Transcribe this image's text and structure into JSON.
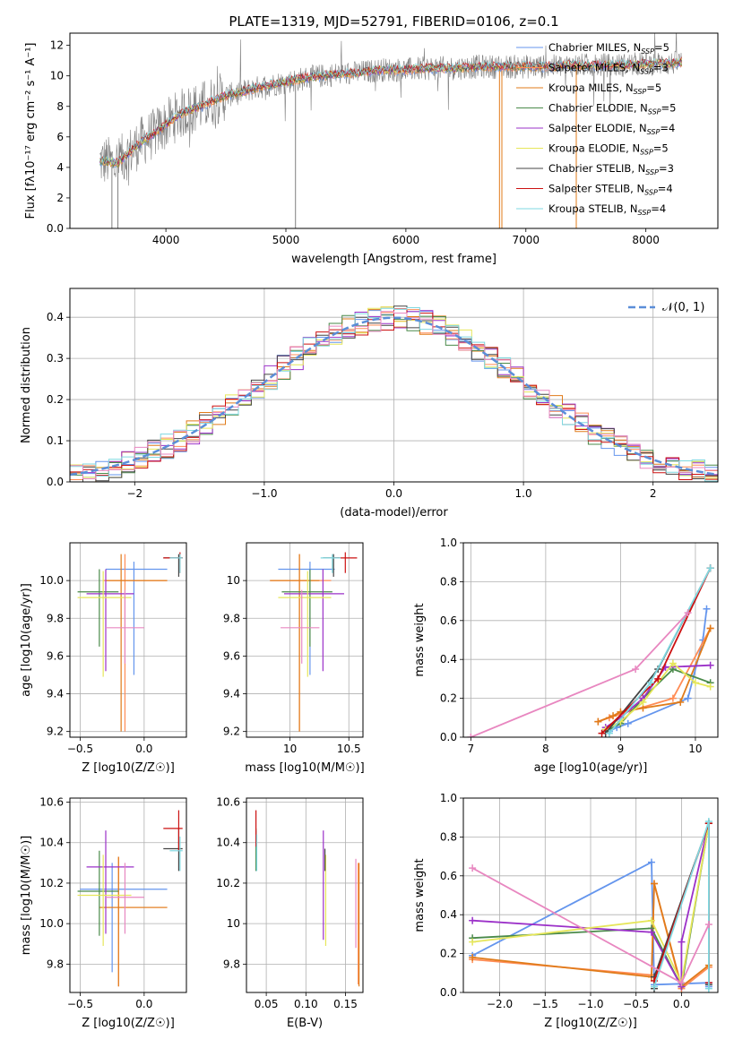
{
  "colors": {
    "Chabrier MILES": "#6495ed",
    "Salpeter MILES": "#ff8c55",
    "Kroupa MILES": "#e07b1a",
    "Chabrier ELODIE": "#4a8a4a",
    "Salpeter ELODIE": "#9b30c8",
    "Kroupa ELODIE": "#e6e65a",
    "Chabrier STELIB": "#444444",
    "Salpeter STELIB": "#cc1111",
    "Kroupa STELIB": "#7fd8e0",
    "extra_pink": "#e887c0",
    "obs": "#808080"
  },
  "chart_data": [
    {
      "id": "spectrum",
      "type": "line",
      "title": "PLATE=1319, MJD=52791, FIBERID=0106, z=0.1",
      "xlabel": "wavelength [Angstrom, rest frame]",
      "ylabel": "Flux [fλ10⁻¹⁷ erg cm⁻² s⁻¹ A⁻¹]",
      "xlim": [
        3200,
        8600
      ],
      "ylim": [
        0,
        12.8
      ],
      "xticks": [
        4000,
        5000,
        6000,
        7000,
        8000
      ],
      "yticks": [
        0,
        2,
        4,
        6,
        8,
        10,
        12
      ],
      "grid": false,
      "legend_position": "top-right",
      "series": [
        {
          "name": "Chabrier MILES, N_SSP=5",
          "color_key": "Chabrier MILES"
        },
        {
          "name": "Salpeter MILES, N_SSP=3",
          "color_key": "Salpeter MILES"
        },
        {
          "name": "Kroupa MILES, N_SSP=5",
          "color_key": "Kroupa MILES"
        },
        {
          "name": "Chabrier ELODIE, N_SSP=5",
          "color_key": "Chabrier ELODIE"
        },
        {
          "name": "Salpeter ELODIE, N_SSP=4",
          "color_key": "Salpeter ELODIE"
        },
        {
          "name": "Kroupa ELODIE, N_SSP=5",
          "color_key": "Kroupa ELODIE"
        },
        {
          "name": "Chabrier STELIB, N_SSP=3",
          "color_key": "Chabrier STELIB"
        },
        {
          "name": "Salpeter STELIB, N_SSP=4",
          "color_key": "Salpeter STELIB"
        },
        {
          "name": "Kroupa STELIB, N_SSP=4",
          "color_key": "Kroupa STELIB"
        }
      ],
      "continuum": [
        [
          3500,
          4.4
        ],
        [
          3600,
          4.3
        ],
        [
          3700,
          5.0
        ],
        [
          3800,
          5.7
        ],
        [
          3900,
          6.2
        ],
        [
          4000,
          6.8
        ],
        [
          4100,
          7.4
        ],
        [
          4200,
          7.8
        ],
        [
          4300,
          8.0
        ],
        [
          4400,
          8.4
        ],
        [
          4500,
          8.7
        ],
        [
          4600,
          8.9
        ],
        [
          4800,
          9.3
        ],
        [
          5000,
          9.6
        ],
        [
          5200,
          9.9
        ],
        [
          5400,
          10.1
        ],
        [
          5600,
          10.2
        ],
        [
          5800,
          10.4
        ],
        [
          6000,
          10.4
        ],
        [
          6200,
          10.5
        ],
        [
          6400,
          10.5
        ],
        [
          6600,
          10.6
        ],
        [
          6800,
          10.6
        ],
        [
          7000,
          10.6
        ],
        [
          7200,
          10.6
        ],
        [
          7400,
          10.7
        ],
        [
          7600,
          10.7
        ],
        [
          7800,
          10.7
        ],
        [
          8000,
          10.8
        ],
        [
          8200,
          10.8
        ],
        [
          8300,
          10.9
        ]
      ]
    },
    {
      "id": "residuals",
      "type": "step",
      "xlabel": "(data-model)/error",
      "ylabel": "Normed distribution",
      "xlim": [
        -2.5,
        2.5
      ],
      "ylim": [
        0,
        0.47
      ],
      "xticks": [
        -2,
        -1,
        0,
        1,
        2
      ],
      "yticks": [
        0.0,
        0.1,
        0.2,
        0.3,
        0.4
      ],
      "grid": true,
      "legend_position": "top-right",
      "legend": [
        "𝒩(0, 1)"
      ],
      "normal_curve": {
        "mean": 0,
        "sigma": 1
      }
    },
    {
      "id": "age_vs_Z",
      "type": "errorbar",
      "xlabel": "Z [log10(Z/Z☉)]",
      "ylabel": "age [log10(age/yr)]",
      "xlim": [
        -0.58,
        0.33
      ],
      "ylim": [
        9.17,
        10.2
      ],
      "xticks": [
        -0.5,
        0.0
      ],
      "yticks": [
        9.2,
        9.4,
        9.6,
        9.8,
        10.0
      ],
      "grid": true,
      "points": [
        {
          "c": "Chabrier MILES",
          "x": -0.08,
          "y": 10.06,
          "xlo": -0.3,
          "xhi": 0.18,
          "ylo": 9.5,
          "yhi": 10.1
        },
        {
          "c": "Salpeter MILES",
          "x": -0.15,
          "y": 10.0,
          "xlo": -0.32,
          "xhi": 0.18,
          "ylo": 9.2,
          "yhi": 10.14
        },
        {
          "c": "Kroupa MILES",
          "x": -0.18,
          "y": 10.0,
          "xlo": -0.3,
          "xhi": 0.18,
          "ylo": 9.2,
          "yhi": 10.14
        },
        {
          "c": "Chabrier ELODIE",
          "x": -0.35,
          "y": 9.94,
          "xlo": -0.52,
          "xhi": -0.2,
          "ylo": 9.65,
          "yhi": 10.06
        },
        {
          "c": "Salpeter ELODIE",
          "x": -0.3,
          "y": 9.93,
          "xlo": -0.45,
          "xhi": -0.08,
          "ylo": 9.52,
          "yhi": 10.06
        },
        {
          "c": "Kroupa ELODIE",
          "x": -0.32,
          "y": 9.91,
          "xlo": -0.52,
          "xhi": -0.1,
          "ylo": 9.49,
          "yhi": 10.05
        },
        {
          "c": "Chabrier STELIB",
          "x": 0.27,
          "y": 10.12,
          "xlo": 0.15,
          "xhi": 0.3,
          "ylo": 10.02,
          "yhi": 10.14
        },
        {
          "c": "Salpeter STELIB",
          "x": 0.28,
          "y": 10.12,
          "xlo": 0.15,
          "xhi": 0.3,
          "ylo": 10.04,
          "yhi": 10.15
        },
        {
          "c": "Kroupa STELIB",
          "x": 0.28,
          "y": 10.12,
          "xlo": 0.2,
          "xhi": 0.3,
          "ylo": 10.04,
          "yhi": 10.14
        },
        {
          "c": "extra_pink",
          "x": -0.15,
          "y": 9.75,
          "xlo": -0.3,
          "xhi": 0.0,
          "ylo": 9.56,
          "yhi": 9.95
        }
      ]
    },
    {
      "id": "age_vs_mass",
      "type": "errorbar",
      "xlabel": "mass [log10(M/M☉)]",
      "ylabel": "",
      "xlim": [
        9.63,
        10.62
      ],
      "ylim": [
        9.17,
        10.2
      ],
      "xticks": [
        10.0,
        10.5
      ],
      "yticks": [
        9.2,
        9.4,
        9.6,
        9.8,
        10.0
      ],
      "grid": true,
      "points": [
        {
          "c": "Chabrier MILES",
          "x": 10.17,
          "y": 10.06,
          "xlo": 9.9,
          "xhi": 10.38,
          "ylo": 9.5,
          "yhi": 10.1
        },
        {
          "c": "Salpeter MILES",
          "x": 10.08,
          "y": 10.0,
          "xlo": 9.83,
          "xhi": 10.35,
          "ylo": 9.2,
          "yhi": 10.14
        },
        {
          "c": "Kroupa MILES",
          "x": 10.08,
          "y": 10.0,
          "xlo": 9.83,
          "xhi": 10.25,
          "ylo": 9.2,
          "yhi": 10.14
        },
        {
          "c": "Chabrier ELODIE",
          "x": 10.17,
          "y": 9.94,
          "xlo": 9.93,
          "xhi": 10.36,
          "ylo": 9.65,
          "yhi": 10.06
        },
        {
          "c": "Salpeter ELODIE",
          "x": 10.28,
          "y": 9.93,
          "xlo": 9.95,
          "xhi": 10.46,
          "ylo": 9.52,
          "yhi": 10.06
        },
        {
          "c": "Kroupa ELODIE",
          "x": 10.15,
          "y": 9.91,
          "xlo": 9.9,
          "xhi": 10.35,
          "ylo": 9.49,
          "yhi": 10.05
        },
        {
          "c": "Chabrier STELIB",
          "x": 10.37,
          "y": 10.12,
          "xlo": 10.28,
          "xhi": 10.42,
          "ylo": 10.02,
          "yhi": 10.14
        },
        {
          "c": "Salpeter STELIB",
          "x": 10.47,
          "y": 10.12,
          "xlo": 10.38,
          "xhi": 10.57,
          "ylo": 10.04,
          "yhi": 10.15
        },
        {
          "c": "Kroupa STELIB",
          "x": 10.36,
          "y": 10.12,
          "xlo": 10.26,
          "xhi": 10.43,
          "ylo": 10.04,
          "yhi": 10.14
        },
        {
          "c": "extra_pink",
          "x": 10.1,
          "y": 9.75,
          "xlo": 9.92,
          "xhi": 10.25,
          "ylo": 9.56,
          "yhi": 9.95
        }
      ]
    },
    {
      "id": "weight_vs_age",
      "type": "line",
      "xlabel": "age [log10(age/yr)]",
      "ylabel": "mass weight",
      "xlim": [
        6.9,
        10.3
      ],
      "ylim": [
        0,
        1.0
      ],
      "xticks": [
        7,
        8,
        9,
        10
      ],
      "yticks": [
        0.0,
        0.2,
        0.4,
        0.6,
        0.8,
        1.0
      ],
      "grid": true,
      "series": [
        {
          "c": "Chabrier MILES",
          "x": [
            8.85,
            8.95,
            9.1,
            9.9,
            10.1,
            10.15
          ],
          "y": [
            0.03,
            0.05,
            0.07,
            0.2,
            0.5,
            0.66
          ]
        },
        {
          "c": "Salpeter MILES",
          "x": [
            8.7,
            8.85,
            9.0,
            9.7,
            10.2
          ],
          "y": [
            0.08,
            0.1,
            0.12,
            0.2,
            0.56
          ]
        },
        {
          "c": "Kroupa MILES",
          "x": [
            8.7,
            8.9,
            9.0,
            9.3,
            9.8,
            10.2
          ],
          "y": [
            0.08,
            0.11,
            0.13,
            0.15,
            0.18,
            0.56
          ]
        },
        {
          "c": "Chabrier ELODIE",
          "x": [
            8.8,
            9.0,
            9.3,
            9.7,
            10.2
          ],
          "y": [
            0.03,
            0.07,
            0.2,
            0.35,
            0.28
          ]
        },
        {
          "c": "Salpeter ELODIE",
          "x": [
            8.8,
            9.0,
            9.3,
            9.6,
            10.2
          ],
          "y": [
            0.05,
            0.1,
            0.2,
            0.36,
            0.37
          ]
        },
        {
          "c": "Kroupa ELODIE",
          "x": [
            8.8,
            9.0,
            9.3,
            9.7,
            10.0,
            10.2
          ],
          "y": [
            0.04,
            0.08,
            0.18,
            0.38,
            0.28,
            0.26
          ]
        },
        {
          "c": "Chabrier STELIB",
          "x": [
            8.8,
            9.5,
            10.2
          ],
          "y": [
            0.02,
            0.35,
            0.87
          ]
        },
        {
          "c": "Salpeter STELIB",
          "x": [
            8.75,
            9.5,
            10.2
          ],
          "y": [
            0.02,
            0.3,
            0.87
          ]
        },
        {
          "c": "Kroupa STELIB",
          "x": [
            8.85,
            9.4,
            10.2
          ],
          "y": [
            0.02,
            0.28,
            0.87
          ]
        },
        {
          "c": "extra_pink",
          "x": [
            7.0,
            9.2,
            9.9
          ],
          "y": [
            0.0,
            0.35,
            0.64
          ]
        }
      ]
    },
    {
      "id": "mass_vs_Z",
      "type": "errorbar",
      "xlabel": "Z [log10(Z/Z☉)]",
      "ylabel": "mass [log10(M/M☉)]",
      "xlim": [
        -0.58,
        0.33
      ],
      "ylim": [
        9.66,
        10.62
      ],
      "xticks": [
        -0.5,
        0.0
      ],
      "yticks": [
        9.8,
        10.0,
        10.2,
        10.4,
        10.6
      ],
      "grid": true,
      "points": [
        {
          "c": "Chabrier MILES",
          "x": -0.25,
          "y": 10.17,
          "xlo": -0.5,
          "xhi": 0.18,
          "ylo": 9.76,
          "yhi": 10.3
        },
        {
          "c": "Salpeter MILES",
          "x": -0.2,
          "y": 10.08,
          "xlo": -0.35,
          "xhi": 0.18,
          "ylo": 9.69,
          "yhi": 10.33
        },
        {
          "c": "Kroupa MILES",
          "x": -0.2,
          "y": 10.08,
          "xlo": -0.35,
          "xhi": 0.18,
          "ylo": 9.69,
          "yhi": 10.33
        },
        {
          "c": "Chabrier ELODIE",
          "x": -0.35,
          "y": 10.16,
          "xlo": -0.52,
          "xhi": -0.2,
          "ylo": 9.94,
          "yhi": 10.36
        },
        {
          "c": "Salpeter ELODIE",
          "x": -0.3,
          "y": 10.28,
          "xlo": -0.45,
          "xhi": -0.08,
          "ylo": 9.95,
          "yhi": 10.46
        },
        {
          "c": "Kroupa ELODIE",
          "x": -0.32,
          "y": 10.14,
          "xlo": -0.52,
          "xhi": -0.1,
          "ylo": 9.89,
          "yhi": 10.34
        },
        {
          "c": "Chabrier STELIB",
          "x": 0.27,
          "y": 10.37,
          "xlo": 0.15,
          "xhi": 0.3,
          "ylo": 10.26,
          "yhi": 10.47
        },
        {
          "c": "Salpeter STELIB",
          "x": 0.27,
          "y": 10.47,
          "xlo": 0.15,
          "xhi": 0.3,
          "ylo": 10.36,
          "yhi": 10.56
        },
        {
          "c": "Kroupa STELIB",
          "x": 0.28,
          "y": 10.36,
          "xlo": 0.2,
          "xhi": 0.3,
          "ylo": 10.26,
          "yhi": 10.43
        },
        {
          "c": "extra_pink",
          "x": -0.15,
          "y": 10.13,
          "xlo": -0.3,
          "xhi": 0.0,
          "ylo": 9.95,
          "yhi": 10.3
        }
      ]
    },
    {
      "id": "mass_vs_EBV",
      "type": "errorbar",
      "xlabel": "E(B-V)",
      "ylabel": "",
      "xlim": [
        0.025,
        0.172
      ],
      "ylim": [
        9.66,
        10.62
      ],
      "xticks": [
        0.05,
        0.1,
        0.15
      ],
      "yticks": [
        9.8,
        10.0,
        10.2,
        10.4,
        10.6
      ],
      "grid": true,
      "points": [
        {
          "c": "Chabrier MILES",
          "x": 0.037,
          "y": 10.37,
          "ylo": 10.26,
          "yhi": 10.46
        },
        {
          "c": "Salpeter MILES",
          "x": 0.166,
          "y": 10.08,
          "ylo": 9.7,
          "yhi": 10.3
        },
        {
          "c": "Kroupa MILES",
          "x": 0.167,
          "y": 10.08,
          "ylo": 9.69,
          "yhi": 10.3
        },
        {
          "c": "Chabrier ELODIE",
          "x": 0.037,
          "y": 10.37,
          "ylo": 10.26,
          "yhi": 10.47
        },
        {
          "c": "Salpeter ELODIE",
          "x": 0.122,
          "y": 10.18,
          "ylo": 9.92,
          "yhi": 10.46
        },
        {
          "c": "Kroupa ELODIE",
          "x": 0.125,
          "y": 10.14,
          "ylo": 9.89,
          "yhi": 10.34
        },
        {
          "c": "Chabrier STELIB",
          "x": 0.124,
          "y": 10.32,
          "ylo": 10.26,
          "yhi": 10.37
        },
        {
          "c": "Salpeter STELIB",
          "x": 0.037,
          "y": 10.47,
          "ylo": 10.38,
          "yhi": 10.56
        },
        {
          "c": "Kroupa STELIB",
          "x": 0.038,
          "y": 10.36,
          "ylo": 10.26,
          "yhi": 10.44
        },
        {
          "c": "extra_pink",
          "x": 0.163,
          "y": 10.1,
          "ylo": 9.88,
          "yhi": 10.32
        }
      ]
    },
    {
      "id": "weight_vs_Z",
      "type": "line",
      "xlabel": "Z [log10(Z/Z☉)]",
      "ylabel": "mass weight",
      "xlim": [
        -2.4,
        0.4
      ],
      "ylim": [
        0,
        1.0
      ],
      "xticks": [
        -2.0,
        -1.5,
        -1.0,
        -0.5,
        0.0
      ],
      "yticks": [
        0.0,
        0.2,
        0.4,
        0.6,
        0.8,
        1.0
      ],
      "grid": true,
      "series": [
        {
          "c": "Chabrier MILES",
          "x": [
            -2.3,
            -0.33,
            -0.3,
            0.3,
            0.3
          ],
          "y": [
            0.19,
            0.67,
            0.04,
            0.05,
            0.03
          ]
        },
        {
          "c": "Salpeter MILES",
          "x": [
            -2.3,
            -0.33,
            -0.3,
            0.0,
            0.3
          ],
          "y": [
            0.17,
            0.09,
            0.56,
            0.02,
            0.13
          ]
        },
        {
          "c": "Kroupa MILES",
          "x": [
            -2.3,
            -0.33,
            -0.3,
            0.0,
            0.3
          ],
          "y": [
            0.18,
            0.08,
            0.56,
            0.03,
            0.14
          ]
        },
        {
          "c": "Chabrier ELODIE",
          "x": [
            -2.3,
            -0.33,
            0.0,
            0.3
          ],
          "y": [
            0.28,
            0.33,
            0.03,
            0.87
          ]
        },
        {
          "c": "Salpeter ELODIE",
          "x": [
            -2.3,
            -0.33,
            0.0,
            0.0,
            0.3
          ],
          "y": [
            0.37,
            0.31,
            0.03,
            0.26,
            0.87
          ]
        },
        {
          "c": "Kroupa ELODIE",
          "x": [
            -2.3,
            -0.33,
            0.0,
            0.3
          ],
          "y": [
            0.26,
            0.37,
            0.05,
            0.87
          ]
        },
        {
          "c": "Chabrier STELIB",
          "x": [
            -0.3,
            -0.3,
            0.3,
            0.3
          ],
          "y": [
            0.02,
            0.08,
            0.87,
            0.04
          ]
        },
        {
          "c": "Salpeter STELIB",
          "x": [
            -0.3,
            0.3,
            0.3
          ],
          "y": [
            0.06,
            0.87,
            0.05
          ]
        },
        {
          "c": "Kroupa STELIB",
          "x": [
            -0.3,
            0.3,
            0.3
          ],
          "y": [
            0.03,
            0.88,
            0.02
          ]
        },
        {
          "c": "extra_pink",
          "x": [
            -2.3,
            0.0,
            0.3
          ],
          "y": [
            0.64,
            0.05,
            0.35
          ]
        }
      ]
    }
  ]
}
